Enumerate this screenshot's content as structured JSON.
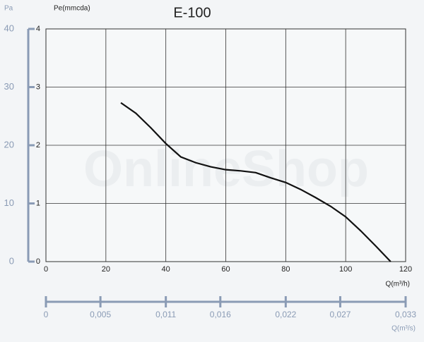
{
  "chart_data": {
    "type": "line",
    "title": "E-100",
    "watermark": "OnlineShop",
    "ylabel": "Pe(mmcda)",
    "xlabel": "Q(m³/h)",
    "x": [
      25,
      30,
      35,
      40,
      45,
      50,
      55,
      60,
      65,
      70,
      75,
      80,
      85,
      90,
      95,
      100,
      105,
      110,
      115
    ],
    "series": [
      {
        "color": "#111111",
        "values": [
          2.73,
          2.55,
          2.3,
          2.03,
          1.8,
          1.7,
          1.63,
          1.58,
          1.56,
          1.53,
          1.44,
          1.36,
          1.24,
          1.1,
          0.95,
          0.77,
          0.53,
          0.27,
          0.0
        ]
      }
    ],
    "xlim": [
      0,
      120
    ],
    "xticks": [
      0,
      20,
      40,
      60,
      80,
      100,
      120
    ],
    "ylim": [
      0,
      4
    ],
    "yticks": [
      0,
      1,
      2,
      3,
      4
    ],
    "grid": true,
    "y2label": "Pa",
    "y2lim": [
      0,
      40
    ],
    "y2ticks": [
      0,
      10,
      20,
      30,
      40
    ],
    "x2label": "Q(m³/s)",
    "x2lim": [
      0,
      0.033
    ],
    "x2ticks": [
      {
        "value": 0,
        "label": "0"
      },
      {
        "value": 0.005,
        "label": "0,005"
      },
      {
        "value": 0.011,
        "label": "0,011"
      },
      {
        "value": 0.016,
        "label": "0,016"
      },
      {
        "value": 0.022,
        "label": "0,022"
      },
      {
        "value": 0.027,
        "label": "0,027"
      },
      {
        "value": 0.033,
        "label": "0,033"
      }
    ]
  }
}
